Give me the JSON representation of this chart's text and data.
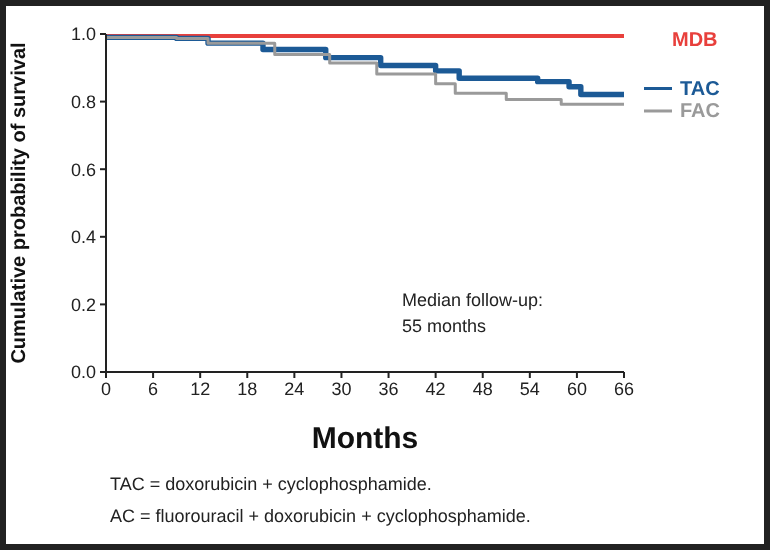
{
  "chart_data": {
    "type": "step",
    "xlabel": "Months",
    "ylabel": "Cumulative probability of survival",
    "xlim": [
      0,
      66
    ],
    "xticks": [
      0,
      6,
      12,
      18,
      24,
      30,
      36,
      42,
      48,
      54,
      60,
      66
    ],
    "ylim": [
      0,
      1.0
    ],
    "yticks": [
      {
        "value": 0,
        "label": "0.0"
      },
      0.2,
      0.4,
      0.6,
      0.8,
      {
        "value": 1,
        "label": "1.0"
      }
    ],
    "legend": "right",
    "marker": "none",
    "line_style": "solid",
    "series": [
      {
        "name": "MDB",
        "color": "#e8403c",
        "x": [
          0,
          66
        ],
        "values": [
          1.0,
          1.0
        ]
      },
      {
        "name": "TAC",
        "color": "#1c5a96",
        "x": [
          0,
          9,
          13,
          20,
          28,
          35,
          42,
          45,
          55,
          59,
          60.5,
          66
        ],
        "values": [
          0.99,
          0.987,
          0.973,
          0.954,
          0.93,
          0.907,
          0.891,
          0.869,
          0.859,
          0.844,
          0.821,
          0.821
        ]
      },
      {
        "name": "FAC",
        "color": "#9a9a9a",
        "x": [
          0,
          9,
          13,
          21.5,
          28.5,
          34.5,
          42,
          44.5,
          51,
          58,
          66
        ],
        "values": [
          0.99,
          0.987,
          0.973,
          0.939,
          0.914,
          0.882,
          0.853,
          0.825,
          0.806,
          0.792,
          0.79
        ]
      }
    ],
    "annotations": [
      "Median follow-up: 55 months",
      "TAC = doxorubicin + cyclophosphamide.",
      "AC = fluorouracil + doxorubicin + cyclophosphamide."
    ]
  }
}
